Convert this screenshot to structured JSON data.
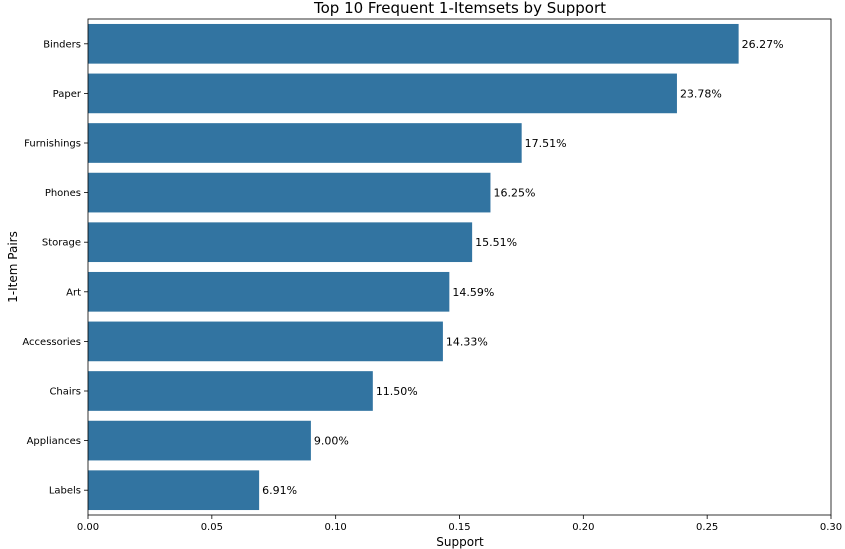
{
  "chart_data": {
    "type": "bar",
    "orientation": "horizontal",
    "title": "Top 10 Frequent 1-Itemsets by Support",
    "xlabel": "Support",
    "ylabel": "1-Item Pairs",
    "categories": [
      "Binders",
      "Paper",
      "Furnishings",
      "Phones",
      "Storage",
      "Art",
      "Accessories",
      "Chairs",
      "Appliances",
      "Labels"
    ],
    "values": [
      0.2627,
      0.2378,
      0.1751,
      0.1625,
      0.1551,
      0.1459,
      0.1433,
      0.115,
      0.09,
      0.0691
    ],
    "value_labels": [
      "26.27%",
      "23.78%",
      "17.51%",
      "16.25%",
      "15.51%",
      "14.59%",
      "14.33%",
      "11.50%",
      "9.00%",
      "6.91%"
    ],
    "xlim": [
      0,
      0.3
    ],
    "xticks": [
      0.0,
      0.05,
      0.1,
      0.15,
      0.2,
      0.25,
      0.3
    ],
    "xtick_labels": [
      "0.00",
      "0.05",
      "0.10",
      "0.15",
      "0.20",
      "0.25",
      "0.30"
    ],
    "bar_color": "#3274a1",
    "grid": false,
    "legend": "none"
  }
}
